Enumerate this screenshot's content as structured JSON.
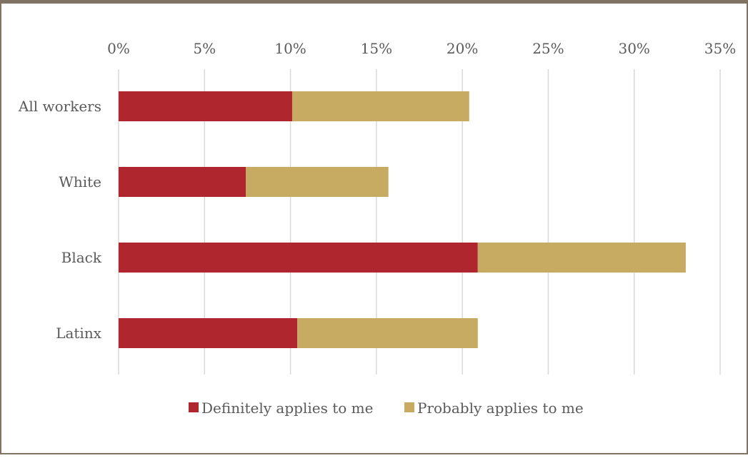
{
  "chart_data": {
    "type": "bar",
    "orientation": "horizontal",
    "stacked": true,
    "categories": [
      "All workers",
      "White",
      "Black",
      "Latinx"
    ],
    "series": [
      {
        "name": "Definitely applies to me",
        "color": "#b0262f",
        "values": [
          10.1,
          7.4,
          20.9,
          10.4
        ]
      },
      {
        "name": "Probably applies to me",
        "color": "#c8ab62",
        "values": [
          10.3,
          8.3,
          12.1,
          10.5
        ]
      }
    ],
    "xlim": [
      0,
      35
    ],
    "xticks": [
      "0%",
      "5%",
      "10%",
      "15%",
      "20%",
      "25%",
      "30%",
      "35%"
    ],
    "axis_position": "top",
    "grid": true,
    "legend_position": "bottom"
  }
}
